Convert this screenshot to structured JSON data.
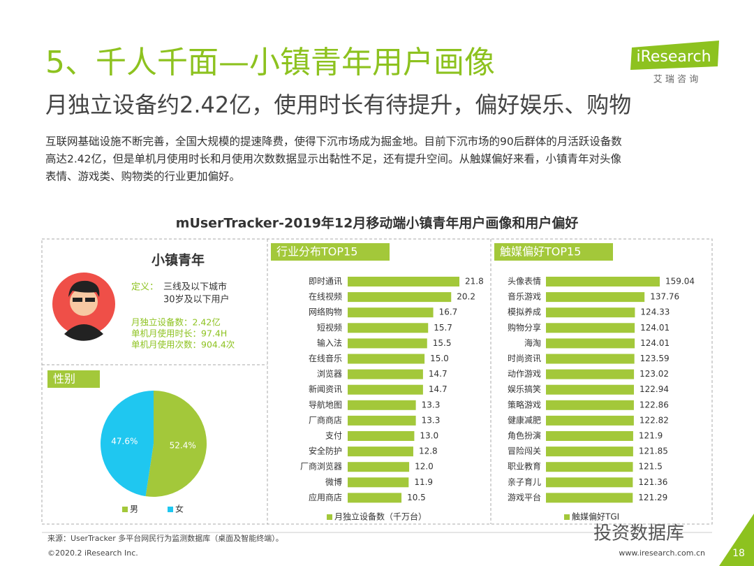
{
  "header": {
    "title": "5、千人千面—小镇青年用户画像",
    "subtitle": "月独立设备约2.42亿，使用时长有待提升，偏好娱乐、购物",
    "paragraph": [
      "互联网基础设施不断完善，全国大规模的提速降费，使得下沉市场成为掘金地。目前下沉市场的90后群体的月活跃设备数",
      "高达2.42亿，但是单机月使用时长和月使用次数数据显示出黏性不足，还有提升空间。从触媒偏好来看，小镇青年对头像",
      "表情、游戏类、购物类的行业更加偏好。"
    ],
    "logo": "iResearch",
    "logo_sub": "艾 瑞 咨 询"
  },
  "section_title": "mUserTracker-2019年12月移动端小镇青年用户画像和用户偏好",
  "profile": {
    "name": "小镇青年",
    "definition_label": "定义：",
    "definition": [
      "三线及以下城市",
      "30岁及以下用户"
    ],
    "stats": [
      "月独立设备数：2.42亿",
      "单机月使用时长：97.4H",
      "单机月使用次数：904.4次"
    ]
  },
  "chart_data": [
    {
      "type": "pie",
      "title": "性别",
      "categories": [
        "男",
        "女"
      ],
      "values": [
        52.4,
        47.6
      ],
      "value_labels": [
        "52.4%",
        "47.6%"
      ],
      "colors": [
        "#a3c83a",
        "#1fc7f0"
      ]
    },
    {
      "type": "hbar",
      "title": "行业分布TOP15",
      "categories": [
        "即时通讯",
        "在线视频",
        "网络购物",
        "短视频",
        "输入法",
        "在线音乐",
        "浏览器",
        "新闻资讯",
        "导航地图",
        "厂商商店",
        "支付",
        "安全防护",
        "厂商浏览器",
        "微博",
        "应用商店"
      ],
      "series": [
        {
          "name": "月独立设备数（千万台）",
          "color": "#a3c83a",
          "values": [
            21.8,
            20.2,
            16.7,
            15.7,
            15.5,
            15.0,
            14.7,
            14.7,
            13.3,
            13.3,
            13.0,
            12.8,
            12.0,
            11.9,
            10.5
          ],
          "value_labels": [
            "21.8",
            "20.2",
            "16.7",
            "15.7",
            "15.5",
            "15.0",
            "14.7",
            "14.7",
            "13.3",
            "13.3",
            "13.0",
            "12.8",
            "12.0",
            "11.9",
            "10.5"
          ]
        }
      ]
    },
    {
      "type": "hbar",
      "title": "触媒偏好TOP15",
      "categories": [
        "头像表情",
        "音乐游戏",
        "模拟养成",
        "购物分享",
        "海淘",
        "时尚资讯",
        "动作游戏",
        "娱乐搞笑",
        "策略游戏",
        "健康减肥",
        "角色扮演",
        "冒险闯关",
        "职业教育",
        "亲子育儿",
        "游戏平台"
      ],
      "series": [
        {
          "name": "触媒偏好TGI",
          "color": "#a3c83a",
          "values": [
            159.04,
            137.76,
            124.33,
            124.01,
            124.01,
            123.59,
            123.02,
            122.94,
            122.86,
            122.82,
            121.9,
            121.85,
            121.5,
            121.36,
            121.29
          ],
          "value_labels": [
            "159.04",
            "137.76",
            "124.33",
            "124.01",
            "124.01",
            "123.59",
            "123.02",
            "122.94",
            "122.86",
            "122.82",
            "121.9",
            "121.85",
            "121.5",
            "121.36",
            "121.29"
          ]
        }
      ]
    }
  ],
  "footer": {
    "source": "来源：UserTracker 多平台网民行为监测数据库（桌面及智能终端）。",
    "copyright": "©2020.2 iResearch Inc.",
    "url": "www.iresearch.com.cn",
    "page": "18",
    "watermark": "投资数据库"
  }
}
